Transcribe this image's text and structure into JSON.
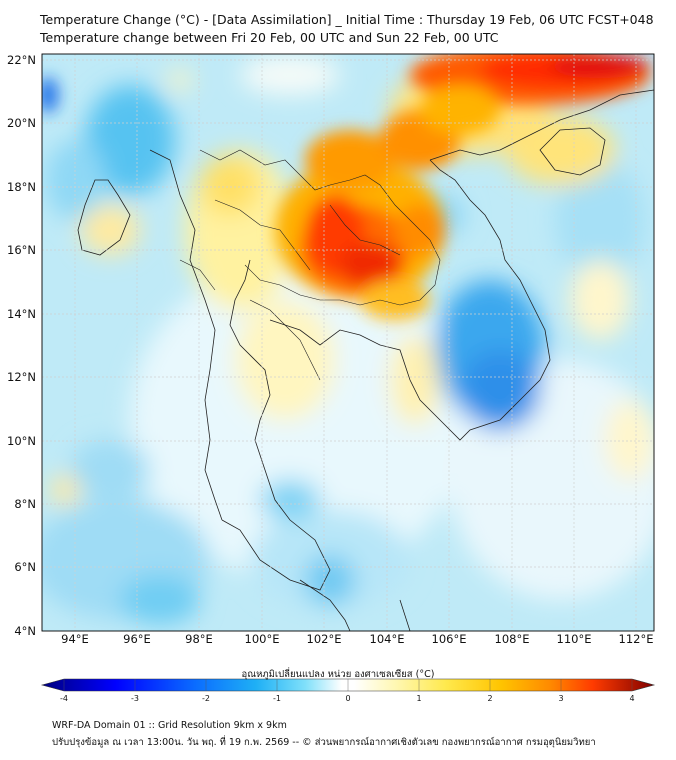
{
  "header": {
    "title_line1": "Temperature Change (°C) - [Data Assimilation] _ Initial Time : Thursday 19 Feb, 06 UTC FCST+048",
    "title_line2": "Temperature change between Fri 20 Feb, 00 UTC and Sun 22 Feb, 00 UTC"
  },
  "map": {
    "lat_labels": [
      "22°N",
      "20°N",
      "18°N",
      "16°N",
      "14°N",
      "12°N",
      "10°N",
      "8°N",
      "6°N",
      "4°N"
    ],
    "lon_labels": [
      "94°E",
      "96°E",
      "98°E",
      "100°E",
      "102°E",
      "104°E",
      "106°E",
      "108°E",
      "110°E",
      "112°E"
    ],
    "lat_range": [
      4,
      22.3
    ],
    "lon_range": [
      93.1,
      112.8
    ]
  },
  "colorbar": {
    "title": "อุณหภูมิเปลี่ยนแปลง หน่วย องศาเซลเซียส (°C)",
    "range": [
      -4,
      4
    ],
    "ticks": [
      "-4",
      "-3",
      "-2",
      "-1",
      "0",
      "1",
      "2",
      "3",
      "4"
    ],
    "colors": [
      "#00007f",
      "#0000ff",
      "#0a6cff",
      "#1fb0f5",
      "#5fd4f7",
      "#b9ecfa",
      "#ffffff",
      "#ffffff",
      "#fff7b0",
      "#ffe94d",
      "#ffc400",
      "#ff8a00",
      "#ff3b00",
      "#d40000",
      "#7f0000"
    ]
  },
  "footer": {
    "line1": "WRF-DA Domain 01 :: Grid Resolution 9km x 9km",
    "line2": "ปรับปรุงข้อมูล ณ เวลา 13:00น. วัน พฤ. ที่ 19 ก.พ. 2569 -- © ส่วนพยากรณ์อากาศเชิงตัวเลข กองพยากรณ์อากาศ กรมอุตุนิยมวิทยา"
  }
}
